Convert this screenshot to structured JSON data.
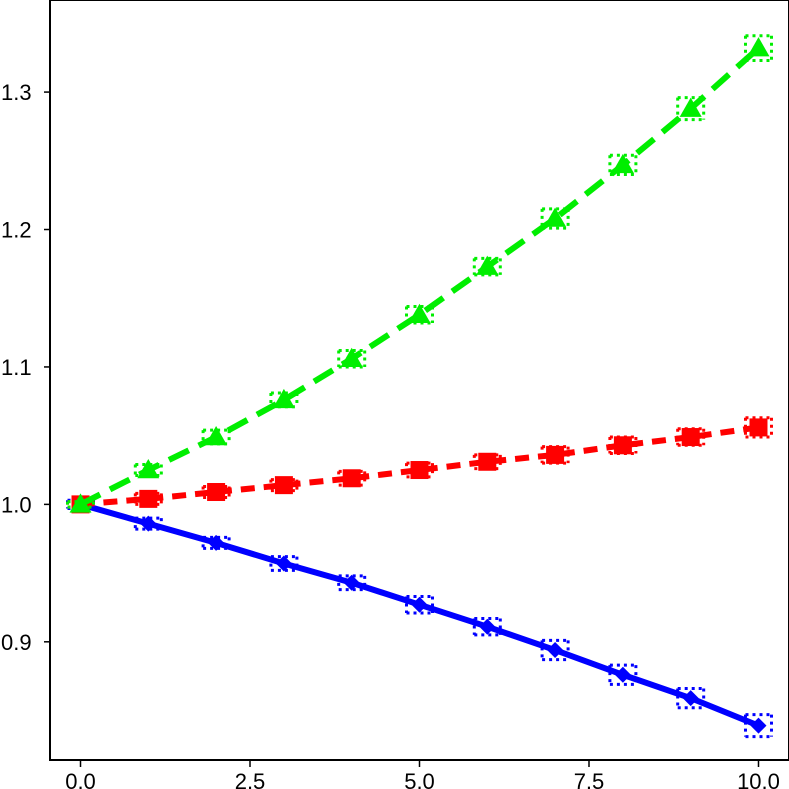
{
  "chart_data": {
    "type": "line",
    "title": "",
    "xlabel": "",
    "ylabel": "",
    "xlim": [
      -0.45,
      10.45
    ],
    "ylim": [
      0.814,
      1.367
    ],
    "grid": false,
    "legend": "none",
    "x_ticks": [
      0.0,
      2.5,
      5.0,
      7.5,
      10.0
    ],
    "x_tick_labels": [
      "0.0",
      "2.5",
      "5.0",
      "7.5",
      "10.0"
    ],
    "y_ticks": [
      0.9,
      1.0,
      1.1,
      1.2,
      1.3
    ],
    "y_tick_labels": [
      "0.9",
      "1.0",
      "1.1",
      "1.2",
      "1.3"
    ],
    "series": [
      {
        "color": "#0000ff",
        "line_style": "solid",
        "marker": "diamond",
        "x": [
          0.0,
          1.0,
          2.0,
          3.0,
          4.0,
          5.0,
          6.0,
          7.0,
          8.0,
          9.0,
          10.0
        ],
        "values": [
          1.0,
          0.986,
          0.972,
          0.957,
          0.943,
          0.927,
          0.911,
          0.894,
          0.876,
          0.859,
          0.839
        ],
        "error": [
          0.003,
          0.004,
          0.004,
          0.005,
          0.005,
          0.006,
          0.006,
          0.007,
          0.007,
          0.007,
          0.008
        ]
      },
      {
        "color": "#ff0000",
        "line_style": "dashed",
        "marker": "square",
        "x": [
          0.0,
          1.0,
          2.0,
          3.0,
          4.0,
          5.0,
          6.0,
          7.0,
          8.0,
          9.0,
          10.0
        ],
        "values": [
          1.0,
          1.004,
          1.009,
          1.014,
          1.019,
          1.025,
          1.031,
          1.036,
          1.043,
          1.049,
          1.056
        ],
        "error": [
          0.002,
          0.004,
          0.004,
          0.004,
          0.005,
          0.005,
          0.005,
          0.006,
          0.006,
          0.006,
          0.007
        ]
      },
      {
        "color": "#00ee00",
        "line_style": "dashed",
        "marker": "triangle",
        "x": [
          0.0,
          1.0,
          2.0,
          3.0,
          4.0,
          5.0,
          6.0,
          7.0,
          8.0,
          9.0,
          10.0
        ],
        "values": [
          1.0,
          1.025,
          1.049,
          1.076,
          1.106,
          1.138,
          1.173,
          1.208,
          1.247,
          1.288,
          1.332
        ],
        "error": [
          0.002,
          0.004,
          0.005,
          0.005,
          0.006,
          0.006,
          0.006,
          0.007,
          0.007,
          0.008,
          0.009
        ]
      }
    ]
  }
}
